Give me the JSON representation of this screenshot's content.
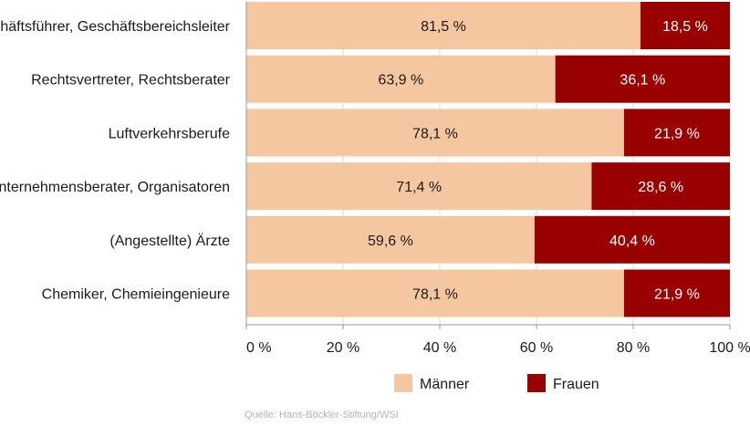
{
  "chart_data": {
    "type": "bar",
    "orientation": "horizontal",
    "stacked": true,
    "categories": [
      "Geschäftsführer, Geschäftsbereichsleiter",
      "Rechtsvertreter, Rechtsberater",
      "Luftverkehrsberufe",
      "Unternehmensberater, Organisatoren",
      "(Angestellte) Ärzte",
      "Chemiker, Chemieingenieure"
    ],
    "series": [
      {
        "name": "Männer",
        "color": "#f5c7a1",
        "values": [
          81.5,
          63.9,
          78.1,
          71.4,
          59.6,
          78.1
        ],
        "labels": [
          "81,5 %",
          "63,9 %",
          "78,1 %",
          "71,4 %",
          "59,6 %",
          "78,1 %"
        ]
      },
      {
        "name": "Frauen",
        "color": "#990000",
        "values": [
          18.5,
          36.1,
          21.9,
          28.6,
          40.4,
          21.9
        ],
        "labels": [
          "18,5 %",
          "36,1 %",
          "21,9 %",
          "28,6 %",
          "40,4 %",
          "21,9 %"
        ]
      }
    ],
    "xlim": [
      0,
      100
    ],
    "xticks": [
      0,
      20,
      40,
      60,
      80,
      100
    ],
    "xtick_labels": [
      "0 %",
      "20 %",
      "40 %",
      "60 %",
      "80 %",
      "100 %"
    ],
    "grid": true,
    "legend_position": "bottom",
    "source": "Quelle: Hans-Böckler-Stiftung/WSI"
  }
}
